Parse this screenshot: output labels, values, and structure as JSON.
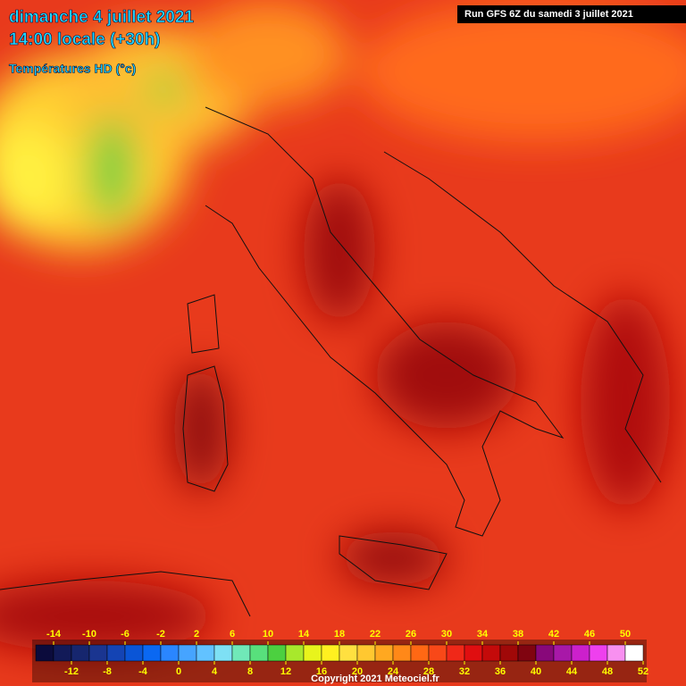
{
  "header": {
    "date": "dimanche 4 juillet 2021",
    "time": "14:00 locale (+30h)",
    "field": "Températures HD (°c)",
    "run": "Run GFS 6Z du samedi 3 juillet 2021"
  },
  "colorbar": {
    "range": [
      -16,
      52
    ],
    "step": 2,
    "colors": [
      "#0b0b3c",
      "#121a58",
      "#16266e",
      "#1a3590",
      "#1444b4",
      "#0a55d6",
      "#0a68f2",
      "#2a86ff",
      "#46a4ff",
      "#62c2ff",
      "#7ee0f4",
      "#70e8b8",
      "#58e07c",
      "#4cd040",
      "#a8e82c",
      "#e8f41c",
      "#fff020",
      "#ffe040",
      "#ffc830",
      "#ffa820",
      "#ff8818",
      "#ff6814",
      "#f84818",
      "#f02818",
      "#e00e10",
      "#c40a0a",
      "#a00808",
      "#800410",
      "#88087a",
      "#a818a8",
      "#cc20cc",
      "#ee40ee",
      "#f890f0",
      "#ffffff"
    ],
    "top_ticks": [
      -14,
      -10,
      -6,
      -2,
      2,
      6,
      10,
      14,
      18,
      22,
      26,
      30,
      34,
      38,
      42,
      46,
      50
    ],
    "bottom_ticks": [
      -12,
      -8,
      -4,
      0,
      4,
      8,
      12,
      16,
      20,
      24,
      28,
      32,
      36,
      40,
      44,
      48,
      52
    ]
  },
  "footer": {
    "copyright": "Copyright 2021 Meteociel.fr"
  }
}
